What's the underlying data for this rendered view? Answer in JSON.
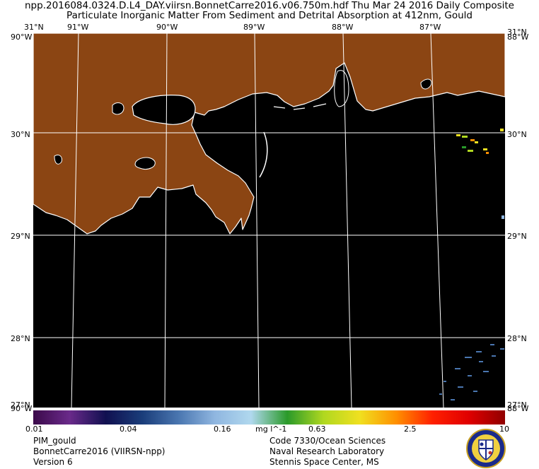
{
  "header": {
    "line1": "npp.2016084.0324.D.L4_DAY.viirsn.BonnetCarre2016.v06.750m.hdf     Thu Mar 24 2016 Daily Composite",
    "line2": "Particulate Inorganic Matter From Sediment and Detrital Absorption at 412nm, Gould"
  },
  "map": {
    "top_lon_labels": [
      "91°W",
      "90°W",
      "89°W",
      "88°W",
      "87°W"
    ],
    "left_lat_labels": [
      "30°N",
      "29°N",
      "28°N"
    ],
    "right_lat_labels": [
      "30°N",
      "29°N",
      "28°N"
    ],
    "corner_labels": {
      "top_left_lat": "31°N",
      "top_left_lon": "90°W",
      "top_right_lat": "31°N",
      "top_right_lon": "88°W",
      "bottom_left_lat": "27°N",
      "bottom_left_lon": "90°W",
      "bottom_right_lat": "27°N",
      "bottom_right_lon": "88°W"
    },
    "colors": {
      "land": "#8B4513",
      "water": "#000000",
      "coast": "#ffffff",
      "grid": "#ffffff"
    }
  },
  "colorbar": {
    "ticks": [
      "0.01",
      "0.04",
      "0.16",
      "0.63",
      "2.5",
      "10"
    ],
    "unit": "mg l^-1",
    "stops": [
      "#3b0a4a",
      "#6a2a8a",
      "#101050",
      "#1a3d7a",
      "#4a76b0",
      "#8fb6e0",
      "#b0d8ee",
      "#2a9a2a",
      "#b0d820",
      "#f0e020",
      "#ff9000",
      "#ff2000",
      "#e00000",
      "#900000"
    ]
  },
  "footer": {
    "left": [
      "PIM_gould",
      "BonnetCarre2016 (VIIRSN-npp)",
      "Version 6"
    ],
    "right": [
      "Code 7330/Ocean Sciences",
      "Naval Research Laboratory",
      "Stennis Space Center, MS"
    ]
  },
  "logo": {
    "icon": "nrl-seal-icon"
  }
}
